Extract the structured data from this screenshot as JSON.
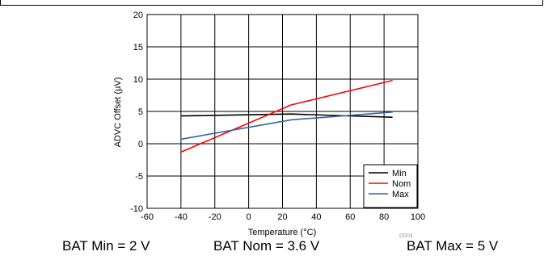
{
  "chart_data": {
    "type": "line",
    "xlabel": "Temperature (°C)",
    "ylabel": "ADVC Offset (µV)",
    "xlim": [
      -60,
      100
    ],
    "ylim": [
      -10,
      20
    ],
    "xticks": [
      "-60",
      "-40",
      "-20",
      "0",
      "20",
      "40",
      "60",
      "80",
      "100"
    ],
    "yticks": [
      "-10",
      "-5",
      "0",
      "5",
      "10",
      "15",
      "20"
    ],
    "grid": true,
    "legend_position": "bottom-right",
    "series": [
      {
        "name": "Min",
        "color": "#000000",
        "x": [
          -40,
          25,
          85
        ],
        "values": [
          4.3,
          4.6,
          4.1
        ]
      },
      {
        "name": "Nom",
        "color": "#ff0000",
        "x": [
          -40,
          25,
          85
        ],
        "values": [
          -1.3,
          6.0,
          9.8
        ]
      },
      {
        "name": "Max",
        "color": "#3465a4",
        "x": [
          -40,
          25,
          85
        ],
        "values": [
          0.7,
          3.7,
          4.9
        ]
      }
    ],
    "figure_id": "D004"
  },
  "captions": {
    "min": "BAT Min = 2 V",
    "nom": "BAT Nom = 3.6 V",
    "max": "BAT Max = 5 V"
  }
}
